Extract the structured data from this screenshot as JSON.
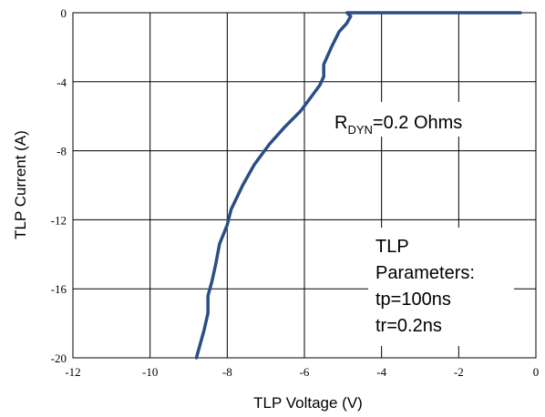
{
  "chart_data": {
    "type": "line",
    "xlabel": "TLP Voltage (V)",
    "ylabel": "TLP Current (A)",
    "xlim": [
      -12,
      0
    ],
    "ylim": [
      -20,
      0
    ],
    "x_ticks": [
      "-12",
      "-10",
      "-8",
      "-6",
      "-4",
      "-2",
      "0"
    ],
    "y_ticks": [
      "0",
      "-4",
      "-8",
      "-12",
      "-16",
      "-20"
    ],
    "grid": true,
    "series_color": "#2b4d86",
    "series": [
      {
        "x": [
          -0.4,
          -2.0,
          -4.9,
          -4.8,
          -4.9,
          -5.1,
          -5.3,
          -5.5,
          -5.5,
          -5.6,
          -5.8,
          -6.1,
          -6.5,
          -6.9,
          -7.3,
          -7.6,
          -7.9,
          -8.0,
          -8.2,
          -8.3,
          -8.4,
          -8.5,
          -8.5,
          -8.6,
          -8.7,
          -8.8
        ],
        "y": [
          0.0,
          0.0,
          0.0,
          -0.2,
          -0.6,
          -1.1,
          -2.0,
          -3.0,
          -3.7,
          -4.2,
          -4.8,
          -5.7,
          -6.6,
          -7.6,
          -8.8,
          -10.0,
          -11.4,
          -12.3,
          -13.4,
          -14.6,
          -15.6,
          -16.4,
          -17.4,
          -18.4,
          -19.2,
          -20.0
        ]
      }
    ],
    "annotations": {
      "rdyn_main": "R",
      "rdyn_sub": "DYN",
      "rdyn_rest": "=0.2 Ohms",
      "tlp_line1": "TLP",
      "tlp_line2": "Parameters:",
      "tlp_line3": "tp=100ns",
      "tlp_line4": "tr=0.2ns"
    }
  }
}
